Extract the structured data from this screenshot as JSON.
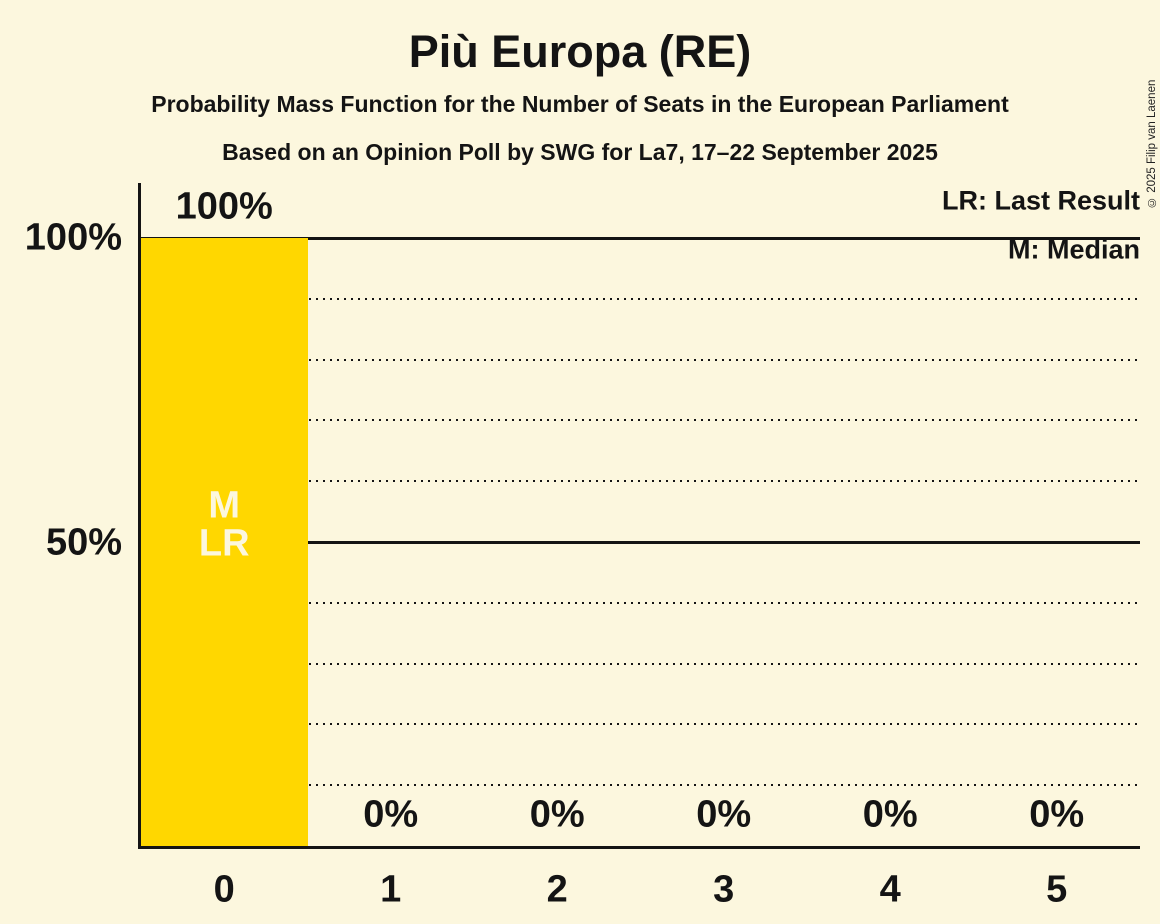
{
  "header": {
    "title": "Più Europa (RE)",
    "subtitle": "Probability Mass Function for the Number of Seats in the European Parliament",
    "poll_info": "Based on an Opinion Poll by SWG for La7, 17–22 September 2025"
  },
  "copyright": "© 2025 Filip van Laenen",
  "legend": {
    "lr": "LR: Last Result",
    "m": "M: Median"
  },
  "colors": {
    "background": "#FCF7DE",
    "bar": "#FFD700",
    "ink": "#141414",
    "bar_text": "#FCF7DE"
  },
  "chart_data": {
    "type": "bar",
    "title": "Più Europa (RE)",
    "subtitle": "Probability Mass Function for the Number of Seats in the European Parliament",
    "annotation": "Based on an Opinion Poll by SWG for La7, 17–22 September 2025",
    "categories": [
      "0",
      "1",
      "2",
      "3",
      "4",
      "5"
    ],
    "values": [
      100,
      0,
      0,
      0,
      0,
      0
    ],
    "bar_labels": [
      "100%",
      "0%",
      "0%",
      "0%",
      "0%",
      "0%"
    ],
    "xlabel": "",
    "ylabel": "",
    "ylim": [
      0,
      100
    ],
    "y_ticks": [
      {
        "value": 100,
        "label": "100%"
      },
      {
        "value": 50,
        "label": "50%"
      }
    ],
    "gridlines": [
      {
        "value": 100,
        "style": "solid"
      },
      {
        "value": 90,
        "style": "dotted"
      },
      {
        "value": 80,
        "style": "dotted"
      },
      {
        "value": 70,
        "style": "dotted"
      },
      {
        "value": 60,
        "style": "dotted"
      },
      {
        "value": 50,
        "style": "solid"
      },
      {
        "value": 40,
        "style": "dotted"
      },
      {
        "value": 30,
        "style": "dotted"
      },
      {
        "value": 20,
        "style": "dotted"
      },
      {
        "value": 10,
        "style": "dotted"
      }
    ],
    "grid": true,
    "legend_position": "top-right",
    "legend_entries": [
      "LR: Last Result",
      "M: Median"
    ],
    "median_category": "0",
    "last_result_category": "0",
    "bar_inner_labels": [
      {
        "bar_index": 0,
        "text": "M",
        "value_pct": 55.9
      },
      {
        "bar_index": 0,
        "text": "LR",
        "value_pct": 49.7
      }
    ]
  }
}
